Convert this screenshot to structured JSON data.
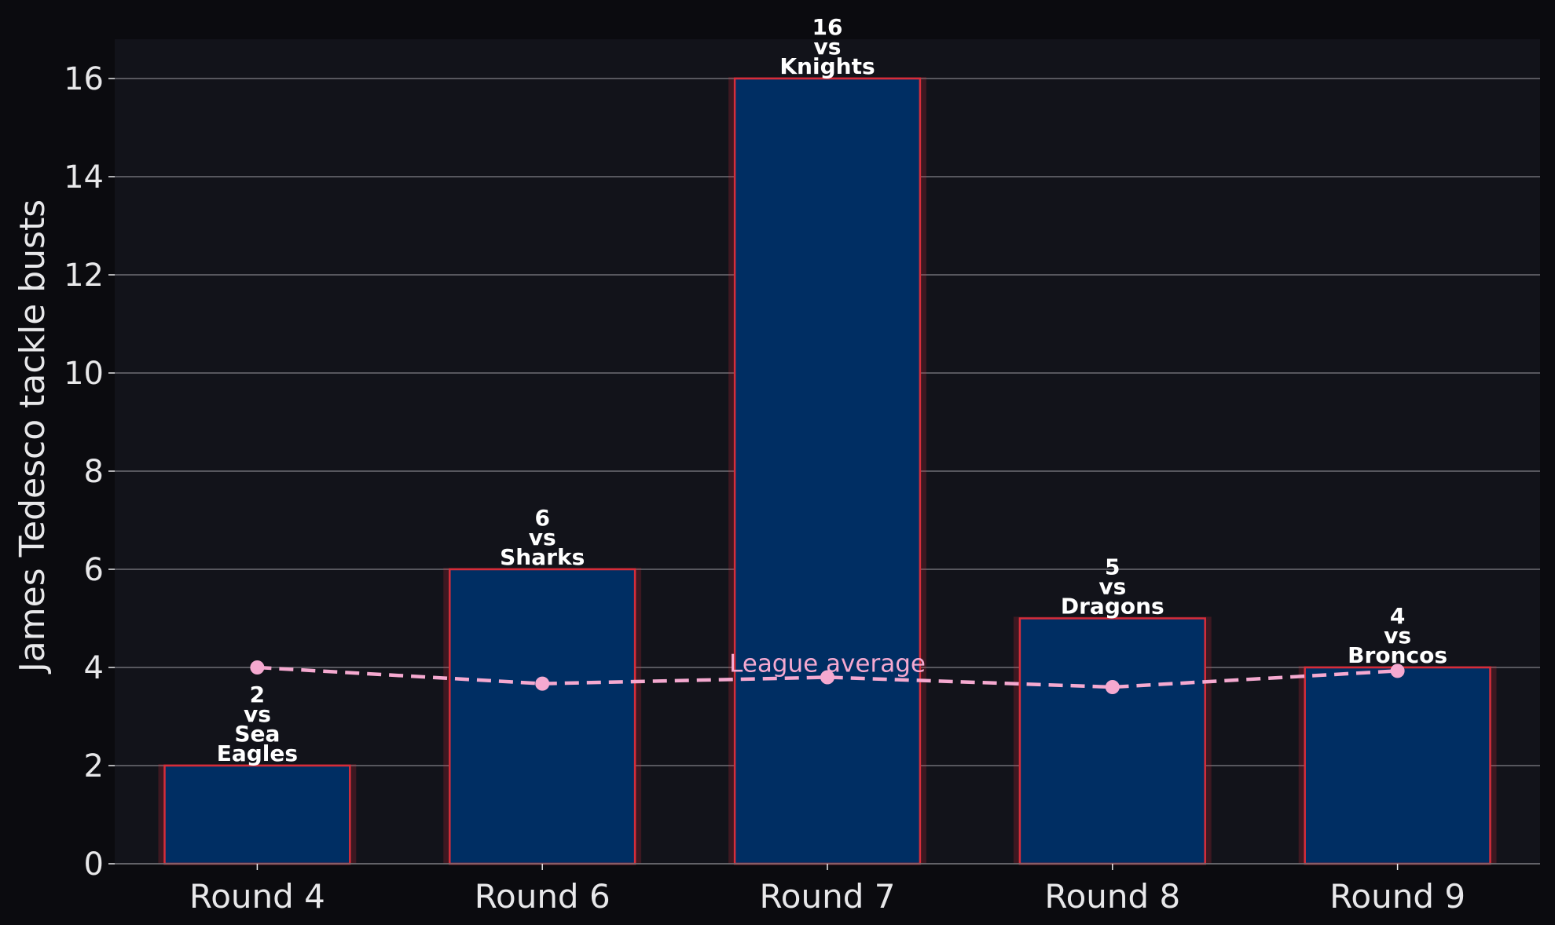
{
  "chart_data": {
    "type": "bar",
    "title": "",
    "xlabel": "",
    "ylabel": "James Tedesco tackle busts",
    "categories": [
      "Round 4",
      "Round 6",
      "Round 7",
      "Round 8",
      "Round 9"
    ],
    "series": [
      {
        "type": "bar",
        "values": [
          2,
          6,
          16,
          5,
          4
        ]
      },
      {
        "name": "League average",
        "type": "line",
        "style": "dashed",
        "values": [
          4.0,
          3.67,
          3.8,
          3.6,
          3.93
        ]
      }
    ],
    "bar_labels": [
      [
        "2",
        "vs",
        "Sea",
        "Eagles"
      ],
      [
        "6",
        "vs",
        "Sharks"
      ],
      [
        "16",
        "vs",
        "Knights"
      ],
      [
        "5",
        "vs",
        "Dragons"
      ],
      [
        "4",
        "vs",
        "Broncos"
      ]
    ],
    "ylim": [
      0,
      16.8
    ],
    "yticks": [
      0,
      2,
      4,
      6,
      8,
      10,
      12,
      14,
      16
    ],
    "grid": "horizontal",
    "colors": {
      "background": "#0b0b0f",
      "plot_background": "#12131a",
      "bar_fill": "#002e63",
      "bar_edge": "#d62d3a",
      "average_line": "#f5a9d0",
      "text": "#e8e8ea",
      "label_text": "#ffffff",
      "grid": "#6e6e74"
    }
  }
}
